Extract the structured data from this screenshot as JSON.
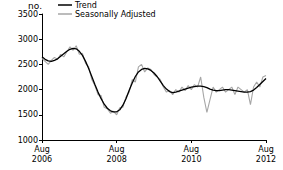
{
  "chart_data": {
    "type": "line",
    "ylabel": "no.",
    "categories": [
      "Aug\n2006",
      null,
      null,
      null,
      null,
      null,
      null,
      null,
      null,
      null,
      null,
      null,
      null,
      null,
      null,
      null,
      null,
      null,
      null,
      null,
      null,
      null,
      null,
      null,
      "Aug\n2008",
      null,
      null,
      null,
      null,
      null,
      null,
      null,
      null,
      null,
      null,
      null,
      null,
      null,
      null,
      null,
      null,
      null,
      null,
      null,
      null,
      null,
      null,
      null,
      "Aug\n2010",
      null,
      null,
      null,
      null,
      null,
      null,
      null,
      null,
      null,
      null,
      null,
      null,
      null,
      null,
      null,
      null,
      null,
      null,
      null,
      null,
      null,
      null,
      null,
      "Aug\n2012"
    ],
    "series": [
      {
        "name": "Trend",
        "color": "#000000",
        "values": [
          2650,
          2600,
          2570,
          2560,
          2580,
          2610,
          2660,
          2710,
          2760,
          2800,
          2820,
          2810,
          2760,
          2680,
          2560,
          2420,
          2260,
          2100,
          1950,
          1820,
          1710,
          1630,
          1580,
          1560,
          1560,
          1600,
          1690,
          1820,
          1980,
          2130,
          2260,
          2350,
          2400,
          2420,
          2410,
          2380,
          2330,
          2260,
          2170,
          2080,
          2010,
          1960,
          1940,
          1950,
          1970,
          1990,
          2010,
          2030,
          2050,
          2060,
          2070,
          2070,
          2060,
          2040,
          2010,
          1990,
          1980,
          1980,
          1990,
          2000,
          2000,
          1990,
          1980,
          1970,
          1960,
          1950,
          1950,
          1960,
          1990,
          2040,
          2100,
          2160,
          2220
        ]
      },
      {
        "name": "Seasonally Adjusted",
        "color": "#a6a6a6",
        "values": [
          2620,
          2560,
          2500,
          2580,
          2640,
          2600,
          2700,
          2650,
          2750,
          2850,
          2780,
          2870,
          2700,
          2720,
          2520,
          2450,
          2200,
          2080,
          1900,
          1880,
          1650,
          1620,
          1530,
          1570,
          1500,
          1640,
          1650,
          1850,
          1950,
          2200,
          2150,
          2450,
          2500,
          2350,
          2430,
          2400,
          2300,
          2250,
          2200,
          2050,
          1950,
          1980,
          1900,
          2000,
          1950,
          2050,
          1980,
          2080,
          2000,
          2100,
          2050,
          2250,
          1850,
          1550,
          1800,
          2050,
          1950,
          2000,
          2050,
          1950,
          2000,
          2050,
          1900,
          2050,
          2000,
          1950,
          2000,
          1700,
          2050,
          2150,
          2050,
          2250,
          2280
        ]
      }
    ],
    "ylim": [
      1000,
      3500
    ],
    "yticks": [
      1000,
      1500,
      2000,
      2500,
      3000,
      3500
    ],
    "grid": false,
    "legend": "upper left"
  }
}
